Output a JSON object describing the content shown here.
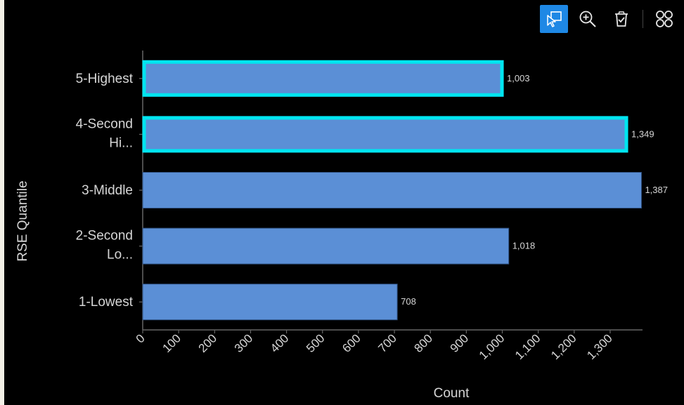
{
  "toolbar": {
    "items": [
      {
        "name": "selection-icon",
        "active": true
      },
      {
        "name": "zoom-in-icon",
        "active": false
      },
      {
        "name": "clear-selection-icon",
        "active": false
      },
      {
        "name": "grid-icon",
        "active": false
      }
    ],
    "accent": "#1e88e5"
  },
  "colors": {
    "bar_fill": "#5b8fd6",
    "bar_stroke": "#2e4f7e",
    "highlight": "#00e5f0",
    "axis": "#666666",
    "label": "#d6d6d6"
  },
  "chart_data": {
    "type": "bar",
    "orientation": "horizontal",
    "categories": [
      {
        "label_lines": [
          "5-Highest"
        ],
        "value": 1003,
        "value_label": "1,003",
        "selected": true
      },
      {
        "label_lines": [
          "4-Second",
          "Hi..."
        ],
        "value": 1349,
        "value_label": "1,349",
        "selected": true
      },
      {
        "label_lines": [
          "3-Middle"
        ],
        "value": 1387,
        "value_label": "1,387",
        "selected": false
      },
      {
        "label_lines": [
          "2-Second",
          "Lo..."
        ],
        "value": 1018,
        "value_label": "1,018",
        "selected": false
      },
      {
        "label_lines": [
          "1-Lowest"
        ],
        "value": 708,
        "value_label": "708",
        "selected": false
      }
    ],
    "x_ticks": [
      "0",
      "100",
      "200",
      "300",
      "400",
      "500",
      "600",
      "700",
      "800",
      "900",
      "1,000",
      "1,100",
      "1,200",
      "1,300"
    ],
    "xlabel": "Count",
    "ylabel": "RSE Quantile",
    "xlim": [
      0,
      1390
    ],
    "grid": false
  }
}
